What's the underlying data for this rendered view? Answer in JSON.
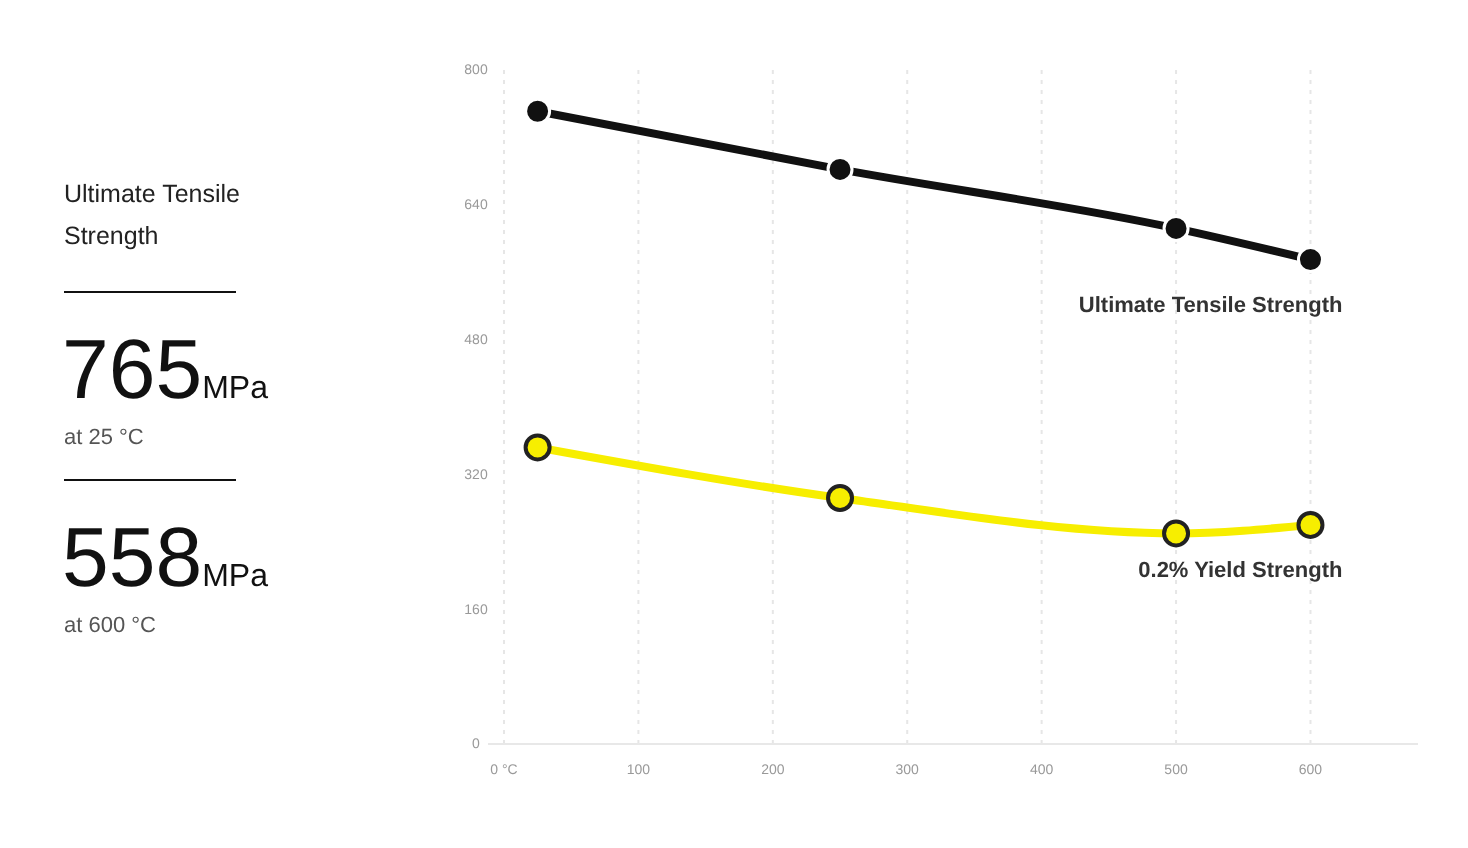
{
  "chart_data": [
    {
      "type": "other",
      "title": "Ultimate Tensile Strength",
      "annotations": [
        "765",
        "MPa",
        "at 25 °C",
        "558",
        "MPa",
        "at 600 °C"
      ]
    },
    {
      "type": "line",
      "x": [
        25,
        250,
        500,
        600
      ],
      "series": [
        {
          "name": "Ultimate Tensile Strength",
          "color": "#111111",
          "values": [
            751,
            682,
            612,
            575
          ]
        },
        {
          "name": "0.2% Yield Strength",
          "color": "#f7ee00",
          "values": [
            352,
            292,
            250,
            260
          ]
        }
      ],
      "xlim": [
        0,
        680
      ],
      "xticks": [
        {
          "value": 0,
          "label": "0 °C"
        },
        100,
        200,
        300,
        400,
        500,
        600
      ],
      "ylim": [
        0,
        800
      ],
      "yticks": [
        0,
        160,
        320,
        480,
        640,
        800
      ],
      "grid": "x",
      "marker": "circle"
    }
  ]
}
